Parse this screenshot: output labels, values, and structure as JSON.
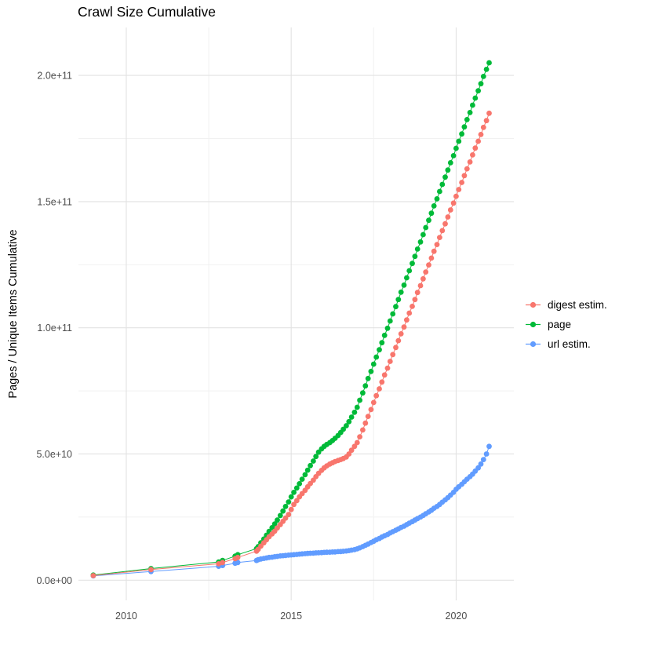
{
  "chart_data": {
    "type": "scatter",
    "title": "Crawl Size Cumulative",
    "xlabel": "",
    "ylabel": "Pages / Unique Items Cumulative",
    "value_unit": "1e9 (billions of pages / items)",
    "grid": true,
    "legend_position": "right",
    "xlim": [
      2008.55,
      2021.75
    ],
    "ylim": [
      -8,
      219
    ],
    "x_ticks": {
      "values": [
        2010,
        2015,
        2020
      ],
      "labels": [
        "2010",
        "2015",
        "2020"
      ]
    },
    "y_ticks": {
      "values": [
        0,
        50,
        100,
        150,
        200
      ],
      "labels": [
        "0.0e+00",
        "5.0e+10",
        "1.0e+11",
        "1.5e+11",
        "2.0e+11"
      ]
    },
    "x_minor": [
      2012.5,
      2017.5
    ],
    "y_minor": [
      25,
      75,
      125,
      175
    ],
    "series": [
      {
        "name": "digest estim.",
        "color": "#F8766D",
        "points": [
          [
            2009.0,
            1.8
          ],
          [
            2010.75,
            4.2
          ],
          [
            2012.8,
            6.5
          ],
          [
            2012.92,
            7.0
          ],
          [
            2013.3,
            8.5
          ],
          [
            2013.38,
            9.0
          ],
          [
            2013.95,
            11.5
          ],
          [
            2014.0,
            12.2
          ],
          [
            2014.08,
            13.5
          ],
          [
            2014.17,
            14.8
          ],
          [
            2014.25,
            16.0
          ],
          [
            2014.33,
            17.2
          ],
          [
            2014.42,
            18.3
          ],
          [
            2014.5,
            19.4
          ],
          [
            2014.58,
            20.7
          ],
          [
            2014.67,
            22.0
          ],
          [
            2014.75,
            23.3
          ],
          [
            2014.83,
            24.6
          ],
          [
            2014.92,
            26.0
          ],
          [
            2015.0,
            28.0
          ],
          [
            2015.08,
            30.0
          ],
          [
            2015.17,
            31.5
          ],
          [
            2015.25,
            33.0
          ],
          [
            2015.33,
            34.3
          ],
          [
            2015.42,
            35.6
          ],
          [
            2015.5,
            37.0
          ],
          [
            2015.58,
            38.3
          ],
          [
            2015.67,
            39.6
          ],
          [
            2015.75,
            41.0
          ],
          [
            2015.83,
            42.3
          ],
          [
            2015.92,
            43.5
          ],
          [
            2016.0,
            44.5
          ],
          [
            2016.08,
            45.3
          ],
          [
            2016.17,
            46.0
          ],
          [
            2016.25,
            46.5
          ],
          [
            2016.33,
            47.0
          ],
          [
            2016.42,
            47.4
          ],
          [
            2016.5,
            47.8
          ],
          [
            2016.58,
            48.2
          ],
          [
            2016.67,
            48.8
          ],
          [
            2016.75,
            50.0
          ],
          [
            2016.83,
            51.5
          ],
          [
            2016.92,
            53.0
          ],
          [
            2017.0,
            54.5
          ],
          [
            2017.08,
            56.8
          ],
          [
            2017.17,
            59.5
          ],
          [
            2017.25,
            62.2
          ],
          [
            2017.33,
            64.9
          ],
          [
            2017.42,
            67.6
          ],
          [
            2017.5,
            70.4
          ],
          [
            2017.58,
            73.1
          ],
          [
            2017.67,
            75.8
          ],
          [
            2017.75,
            78.5
          ],
          [
            2017.83,
            81.3
          ],
          [
            2017.92,
            84.0
          ],
          [
            2018.0,
            86.7
          ],
          [
            2018.08,
            89.4
          ],
          [
            2018.17,
            92.2
          ],
          [
            2018.25,
            94.9
          ],
          [
            2018.33,
            97.6
          ],
          [
            2018.42,
            100.3
          ],
          [
            2018.5,
            103.1
          ],
          [
            2018.58,
            105.8
          ],
          [
            2018.67,
            108.5
          ],
          [
            2018.75,
            111.2
          ],
          [
            2018.83,
            114.0
          ],
          [
            2018.92,
            116.7
          ],
          [
            2019.0,
            119.4
          ],
          [
            2019.08,
            122.1
          ],
          [
            2019.17,
            124.9
          ],
          [
            2019.25,
            127.6
          ],
          [
            2019.33,
            130.3
          ],
          [
            2019.42,
            133.0
          ],
          [
            2019.5,
            135.8
          ],
          [
            2019.58,
            138.5
          ],
          [
            2019.67,
            141.2
          ],
          [
            2019.75,
            143.9
          ],
          [
            2019.83,
            146.7
          ],
          [
            2019.92,
            149.4
          ],
          [
            2020.0,
            152.1
          ],
          [
            2020.08,
            154.8
          ],
          [
            2020.17,
            157.6
          ],
          [
            2020.25,
            160.3
          ],
          [
            2020.33,
            163.0
          ],
          [
            2020.42,
            165.7
          ],
          [
            2020.5,
            168.5
          ],
          [
            2020.58,
            171.2
          ],
          [
            2020.67,
            173.9
          ],
          [
            2020.75,
            176.6
          ],
          [
            2020.83,
            179.4
          ],
          [
            2020.92,
            182.1
          ],
          [
            2021.0,
            185.0
          ]
        ]
      },
      {
        "name": "page",
        "color": "#00BA38",
        "points": [
          [
            2009.0,
            2.0
          ],
          [
            2010.75,
            4.6
          ],
          [
            2012.8,
            7.2
          ],
          [
            2012.92,
            7.8
          ],
          [
            2013.3,
            9.5
          ],
          [
            2013.38,
            10.1
          ],
          [
            2013.95,
            12.5
          ],
          [
            2014.0,
            13.3
          ],
          [
            2014.08,
            14.8
          ],
          [
            2014.17,
            16.3
          ],
          [
            2014.25,
            17.8
          ],
          [
            2014.33,
            19.3
          ],
          [
            2014.42,
            20.8
          ],
          [
            2014.5,
            22.3
          ],
          [
            2014.58,
            23.8
          ],
          [
            2014.67,
            25.6
          ],
          [
            2014.75,
            27.4
          ],
          [
            2014.83,
            29.2
          ],
          [
            2014.92,
            31.0
          ],
          [
            2015.0,
            33.0
          ],
          [
            2015.08,
            34.8
          ],
          [
            2015.17,
            36.5
          ],
          [
            2015.25,
            38.2
          ],
          [
            2015.33,
            40.0
          ],
          [
            2015.42,
            41.8
          ],
          [
            2015.5,
            43.6
          ],
          [
            2015.58,
            45.4
          ],
          [
            2015.67,
            47.2
          ],
          [
            2015.75,
            49.0
          ],
          [
            2015.83,
            50.7
          ],
          [
            2015.92,
            52.0
          ],
          [
            2016.0,
            53.0
          ],
          [
            2016.08,
            53.8
          ],
          [
            2016.17,
            54.5
          ],
          [
            2016.25,
            55.3
          ],
          [
            2016.33,
            56.2
          ],
          [
            2016.42,
            57.3
          ],
          [
            2016.5,
            58.5
          ],
          [
            2016.58,
            59.8
          ],
          [
            2016.67,
            61.2
          ],
          [
            2016.75,
            62.8
          ],
          [
            2016.83,
            64.6
          ],
          [
            2016.92,
            66.5
          ],
          [
            2017.0,
            68.5
          ],
          [
            2017.08,
            71.3
          ],
          [
            2017.17,
            74.2
          ],
          [
            2017.25,
            77.0
          ],
          [
            2017.33,
            79.9
          ],
          [
            2017.42,
            82.7
          ],
          [
            2017.5,
            85.6
          ],
          [
            2017.58,
            88.4
          ],
          [
            2017.67,
            91.3
          ],
          [
            2017.75,
            94.1
          ],
          [
            2017.83,
            97.0
          ],
          [
            2017.92,
            99.8
          ],
          [
            2018.0,
            102.7
          ],
          [
            2018.08,
            105.5
          ],
          [
            2018.17,
            108.4
          ],
          [
            2018.25,
            111.2
          ],
          [
            2018.33,
            114.1
          ],
          [
            2018.42,
            116.9
          ],
          [
            2018.5,
            119.8
          ],
          [
            2018.58,
            122.6
          ],
          [
            2018.67,
            125.5
          ],
          [
            2018.75,
            128.3
          ],
          [
            2018.83,
            131.2
          ],
          [
            2018.92,
            134.0
          ],
          [
            2019.0,
            136.9
          ],
          [
            2019.08,
            139.7
          ],
          [
            2019.17,
            142.6
          ],
          [
            2019.25,
            145.4
          ],
          [
            2019.33,
            148.3
          ],
          [
            2019.42,
            151.1
          ],
          [
            2019.5,
            154.0
          ],
          [
            2019.58,
            156.8
          ],
          [
            2019.67,
            159.7
          ],
          [
            2019.75,
            162.5
          ],
          [
            2019.83,
            165.4
          ],
          [
            2019.92,
            168.2
          ],
          [
            2020.0,
            171.1
          ],
          [
            2020.08,
            173.9
          ],
          [
            2020.17,
            176.8
          ],
          [
            2020.25,
            179.6
          ],
          [
            2020.33,
            182.5
          ],
          [
            2020.42,
            185.3
          ],
          [
            2020.5,
            188.2
          ],
          [
            2020.58,
            191.0
          ],
          [
            2020.67,
            193.9
          ],
          [
            2020.75,
            196.7
          ],
          [
            2020.83,
            199.6
          ],
          [
            2020.92,
            202.4
          ],
          [
            2021.0,
            205.0
          ]
        ]
      },
      {
        "name": "url estim.",
        "color": "#619CFF",
        "points": [
          [
            2009.0,
            1.7
          ],
          [
            2010.75,
            3.4
          ],
          [
            2012.8,
            5.5
          ],
          [
            2012.92,
            5.8
          ],
          [
            2013.3,
            6.7
          ],
          [
            2013.38,
            7.0
          ],
          [
            2013.95,
            7.8
          ],
          [
            2014.0,
            8.1
          ],
          [
            2014.08,
            8.4
          ],
          [
            2014.17,
            8.6
          ],
          [
            2014.25,
            8.8
          ],
          [
            2014.33,
            9.0
          ],
          [
            2014.42,
            9.1
          ],
          [
            2014.5,
            9.3
          ],
          [
            2014.58,
            9.4
          ],
          [
            2014.67,
            9.6
          ],
          [
            2014.75,
            9.7
          ],
          [
            2014.83,
            9.8
          ],
          [
            2014.92,
            9.9
          ],
          [
            2015.0,
            10.0
          ],
          [
            2015.08,
            10.1
          ],
          [
            2015.17,
            10.2
          ],
          [
            2015.25,
            10.3
          ],
          [
            2015.33,
            10.4
          ],
          [
            2015.42,
            10.5
          ],
          [
            2015.5,
            10.6
          ],
          [
            2015.58,
            10.65
          ],
          [
            2015.67,
            10.7
          ],
          [
            2015.75,
            10.8
          ],
          [
            2015.83,
            10.85
          ],
          [
            2015.92,
            10.9
          ],
          [
            2016.0,
            11.0
          ],
          [
            2016.08,
            11.05
          ],
          [
            2016.17,
            11.1
          ],
          [
            2016.25,
            11.15
          ],
          [
            2016.33,
            11.2
          ],
          [
            2016.42,
            11.3
          ],
          [
            2016.5,
            11.35
          ],
          [
            2016.58,
            11.45
          ],
          [
            2016.67,
            11.55
          ],
          [
            2016.75,
            11.7
          ],
          [
            2016.83,
            11.9
          ],
          [
            2016.92,
            12.1
          ],
          [
            2017.0,
            12.4
          ],
          [
            2017.08,
            12.8
          ],
          [
            2017.17,
            13.3
          ],
          [
            2017.25,
            13.8
          ],
          [
            2017.33,
            14.3
          ],
          [
            2017.42,
            14.9
          ],
          [
            2017.5,
            15.4
          ],
          [
            2017.58,
            16.0
          ],
          [
            2017.67,
            16.5
          ],
          [
            2017.75,
            17.1
          ],
          [
            2017.83,
            17.6
          ],
          [
            2017.92,
            18.1
          ],
          [
            2018.0,
            18.7
          ],
          [
            2018.08,
            19.2
          ],
          [
            2018.17,
            19.8
          ],
          [
            2018.25,
            20.3
          ],
          [
            2018.33,
            20.9
          ],
          [
            2018.42,
            21.4
          ],
          [
            2018.5,
            22.0
          ],
          [
            2018.58,
            22.6
          ],
          [
            2018.67,
            23.2
          ],
          [
            2018.75,
            23.8
          ],
          [
            2018.83,
            24.4
          ],
          [
            2018.92,
            25.0
          ],
          [
            2019.0,
            25.6
          ],
          [
            2019.08,
            26.3
          ],
          [
            2019.17,
            27.0
          ],
          [
            2019.25,
            27.7
          ],
          [
            2019.33,
            28.5
          ],
          [
            2019.42,
            29.2
          ],
          [
            2019.5,
            30.0
          ],
          [
            2019.58,
            30.9
          ],
          [
            2019.67,
            31.8
          ],
          [
            2019.75,
            32.7
          ],
          [
            2019.83,
            33.7
          ],
          [
            2019.92,
            34.8
          ],
          [
            2020.0,
            36.0
          ],
          [
            2020.08,
            37.0
          ],
          [
            2020.17,
            38.0
          ],
          [
            2020.25,
            39.0
          ],
          [
            2020.33,
            40.0
          ],
          [
            2020.42,
            41.0
          ],
          [
            2020.5,
            42.0
          ],
          [
            2020.58,
            43.2
          ],
          [
            2020.67,
            44.5
          ],
          [
            2020.75,
            46.0
          ],
          [
            2020.83,
            47.8
          ],
          [
            2020.92,
            50.0
          ],
          [
            2021.0,
            53.0
          ]
        ]
      }
    ]
  }
}
